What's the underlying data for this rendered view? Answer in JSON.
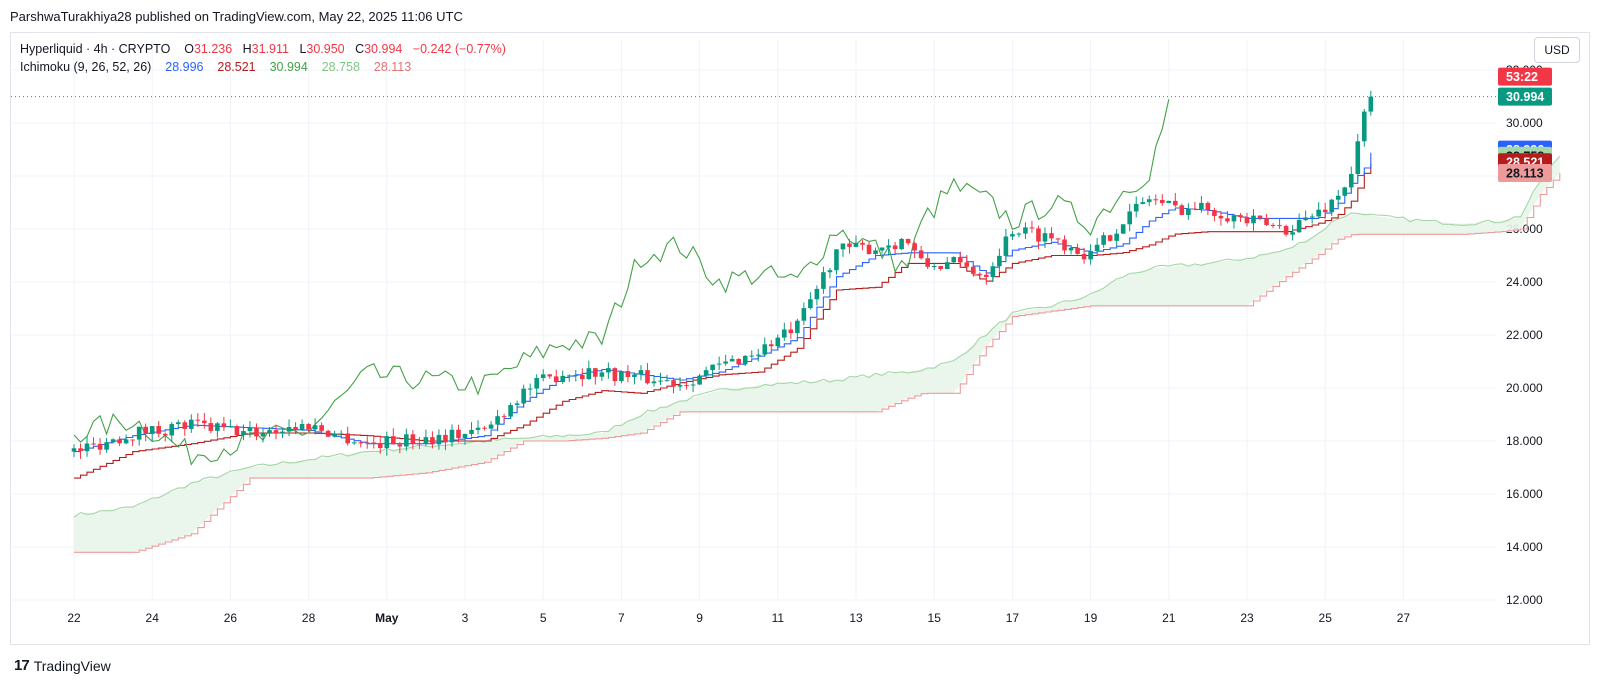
{
  "header": {
    "published_line": "ParshwaTurakhiya28 published on TradingView.com, May 22, 2025 11:06 UTC",
    "currency_button": "USD"
  },
  "legend": {
    "symbol": "Hyperliquid · 4h · CRYPTO",
    "open_label": "O",
    "open": "31.236",
    "high_label": "H",
    "high": "31.911",
    "low_label": "L",
    "low": "30.950",
    "close_label": "C",
    "close": "30.994",
    "change": "−0.242 (−0.77%)",
    "indicator": "Ichimoku (9, 26, 52, 26)",
    "ind_values": [
      "28.996",
      "28.521",
      "30.994",
      "28.758",
      "28.113"
    ]
  },
  "footer": {
    "brand": "TradingView"
  },
  "colors": {
    "up": "#089981",
    "down": "#f23645",
    "conversion": "#2962ff",
    "base": "#b71c1c",
    "lagging": "#43a047",
    "lead_a": "#a5d6a7",
    "lead_b": "#ef9a9a",
    "cloud": "#e8f5e9"
  },
  "chart_data": {
    "type": "candlestick",
    "y_axis": {
      "min": 12,
      "max": 32,
      "ticks": [
        "12.000",
        "14.000",
        "16.000",
        "18.000",
        "20.000",
        "22.000",
        "24.000",
        "26.000",
        "28.000",
        "30.000",
        "32.000"
      ]
    },
    "x_axis": {
      "ticks": [
        "22",
        "24",
        "26",
        "28",
        "May",
        "3",
        "5",
        "7",
        "9",
        "11",
        "13",
        "15",
        "17",
        "19",
        "21",
        "23",
        "25",
        "27"
      ]
    },
    "last_price": 30.994,
    "price_labels": [
      {
        "text": "53:22",
        "value": 31.75,
        "color": "#f23645"
      },
      {
        "text": "30.994",
        "value": 30.994,
        "color": "#089981"
      },
      {
        "text": "28.996",
        "value": 28.996,
        "color": "#2962ff"
      },
      {
        "text": "28.758",
        "value": 28.758,
        "color": "#a5d6a7"
      },
      {
        "text": "28.521",
        "value": 28.521,
        "color": "#b71c1c"
      },
      {
        "text": "28.113",
        "value": 28.113,
        "color": "#ef9a9a"
      }
    ],
    "anchors": [
      {
        "d": 0,
        "price": 17.6,
        "lagging": 18.3,
        "conversion": 17.6,
        "base": 16.6,
        "span_a": 15.2,
        "span_b": 13.8
      },
      {
        "d": 1.5,
        "price": 18.3,
        "lagging": 18.8,
        "conversion": 18.2,
        "base": 17.6,
        "span_a": 15.5,
        "span_b": 13.8
      },
      {
        "d": 3,
        "price": 18.6,
        "lagging": 17.5,
        "conversion": 18.6,
        "base": 17.9,
        "span_a": 16.4,
        "span_b": 14.5
      },
      {
        "d": 4.5,
        "price": 18.3,
        "lagging": 18.0,
        "conversion": 18.5,
        "base": 18.3,
        "span_a": 17.0,
        "span_b": 16.6
      },
      {
        "d": 6,
        "price": 18.6,
        "lagging": 18.4,
        "conversion": 18.4,
        "base": 18.3,
        "span_a": 17.3,
        "span_b": 16.6
      },
      {
        "d": 7.5,
        "price": 17.9,
        "lagging": 20.5,
        "conversion": 17.9,
        "base": 18.2,
        "span_a": 17.6,
        "span_b": 16.6
      },
      {
        "d": 9,
        "price": 18.1,
        "lagging": 20.3,
        "conversion": 17.9,
        "base": 18.0,
        "span_a": 17.8,
        "span_b": 16.8
      },
      {
        "d": 10.5,
        "price": 18.4,
        "lagging": 20.1,
        "conversion": 18.2,
        "base": 18.0,
        "span_a": 18.0,
        "span_b": 17.2
      },
      {
        "d": 11.5,
        "price": 19.9,
        "lagging": 21.0,
        "conversion": 19.5,
        "base": 18.6,
        "span_a": 18.1,
        "span_b": 18.0
      },
      {
        "d": 12.5,
        "price": 20.6,
        "lagging": 21.7,
        "conversion": 20.4,
        "base": 19.5,
        "span_a": 18.2,
        "span_b": 18.0
      },
      {
        "d": 13.5,
        "price": 20.6,
        "lagging": 21.8,
        "conversion": 20.7,
        "base": 19.9,
        "span_a": 18.3,
        "span_b": 18.1
      },
      {
        "d": 14.5,
        "price": 20.4,
        "lagging": 25.0,
        "conversion": 20.5,
        "base": 19.8,
        "span_a": 19.0,
        "span_b": 18.3
      },
      {
        "d": 15.5,
        "price": 20.2,
        "lagging": 25.4,
        "conversion": 20.3,
        "base": 20.2,
        "span_a": 19.5,
        "span_b": 19.1
      },
      {
        "d": 16.5,
        "price": 20.8,
        "lagging": 24.0,
        "conversion": 20.6,
        "base": 20.5,
        "span_a": 19.9,
        "span_b": 19.1
      },
      {
        "d": 17.5,
        "price": 21.4,
        "lagging": 24.3,
        "conversion": 21.2,
        "base": 20.6,
        "span_a": 20.1,
        "span_b": 19.1
      },
      {
        "d": 18.5,
        "price": 22.3,
        "lagging": 24.0,
        "conversion": 21.9,
        "base": 21.5,
        "span_a": 20.2,
        "span_b": 19.1
      },
      {
        "d": 19.5,
        "price": 25.2,
        "lagging": 26.0,
        "conversion": 24.2,
        "base": 23.7,
        "span_a": 20.3,
        "span_b": 19.1
      },
      {
        "d": 20.5,
        "price": 25.3,
        "lagging": 25.3,
        "conversion": 25.0,
        "base": 23.8,
        "span_a": 20.5,
        "span_b": 19.1
      },
      {
        "d": 21.3,
        "price": 25.6,
        "lagging": 24.5,
        "conversion": 25.1,
        "base": 24.7,
        "span_a": 20.6,
        "span_b": 19.6
      },
      {
        "d": 21.7,
        "price": 24.6,
        "lagging": 26.3,
        "conversion": 25.1,
        "base": 24.7,
        "span_a": 20.7,
        "span_b": 19.8
      },
      {
        "d": 22.5,
        "price": 24.7,
        "lagging": 27.6,
        "conversion": 25.1,
        "base": 24.7,
        "span_a": 21.0,
        "span_b": 19.8
      },
      {
        "d": 23.3,
        "price": 24.3,
        "lagging": 27.1,
        "conversion": 24.3,
        "base": 24.0,
        "span_a": 22.0,
        "span_b": 21.5
      },
      {
        "d": 24.0,
        "price": 26.0,
        "lagging": 26.3,
        "conversion": 25.2,
        "base": 24.7,
        "span_a": 22.8,
        "span_b": 22.7
      },
      {
        "d": 25.0,
        "price": 25.7,
        "lagging": 27.0,
        "conversion": 25.5,
        "base": 25.0,
        "span_a": 23.1,
        "span_b": 22.9
      },
      {
        "d": 26.0,
        "price": 25.0,
        "lagging": 26.2,
        "conversion": 25.1,
        "base": 25.0,
        "span_a": 23.5,
        "span_b": 23.1
      },
      {
        "d": 26.8,
        "price": 26.3,
        "lagging": 27.4,
        "conversion": 25.4,
        "base": 25.1,
        "span_a": 24.2,
        "span_b": 23.1
      },
      {
        "d": 27.5,
        "price": 27.2,
        "lagging": 28.2,
        "conversion": 26.3,
        "base": 25.4,
        "span_a": 24.5,
        "span_b": 23.1
      },
      {
        "d": 28.1,
        "price": 26.8,
        "lagging": 31.1,
        "conversion": 26.8,
        "base": 25.8,
        "span_a": 24.6,
        "span_b": 23.1
      },
      {
        "d": 29.0,
        "price": 26.8,
        "lagging": null,
        "conversion": 26.7,
        "base": 25.9,
        "span_a": 24.7,
        "span_b": 23.1
      },
      {
        "d": 30.0,
        "price": 26.3,
        "lagging": null,
        "conversion": 26.4,
        "base": 25.9,
        "span_a": 24.9,
        "span_b": 23.1
      },
      {
        "d": 31.0,
        "price": 26.0,
        "lagging": null,
        "conversion": 26.4,
        "base": 25.9,
        "span_a": 25.2,
        "span_b": 24.2
      },
      {
        "d": 31.8,
        "price": 26.6,
        "lagging": null,
        "conversion": 26.4,
        "base": 26.2,
        "span_a": 25.8,
        "span_b": 25.0
      },
      {
        "d": 32.3,
        "price": 27.2,
        "lagging": null,
        "conversion": 26.9,
        "base": 26.5,
        "span_a": 26.4,
        "span_b": 25.6
      },
      {
        "d": 32.7,
        "price": 28.2,
        "lagging": null,
        "conversion": 27.8,
        "base": 27.1,
        "span_a": 26.6,
        "span_b": 25.8
      },
      {
        "d": 33.0,
        "price": 30.3,
        "lagging": null,
        "conversion": 28.3,
        "base": 28.1,
        "span_a": 26.6,
        "span_b": 25.8
      },
      {
        "d": 33.2,
        "price": 30.994,
        "lagging": null,
        "conversion": 28.996,
        "base": 28.521,
        "span_a": 26.5,
        "span_b": 25.8
      },
      {
        "d": 34.5,
        "price": null,
        "lagging": null,
        "conversion": null,
        "base": null,
        "span_a": 26.3,
        "span_b": 25.8
      },
      {
        "d": 35.5,
        "price": null,
        "lagging": null,
        "conversion": null,
        "base": null,
        "span_a": 26.2,
        "span_b": 25.8
      },
      {
        "d": 36.5,
        "price": null,
        "lagging": null,
        "conversion": null,
        "base": null,
        "span_a": 26.3,
        "span_b": 25.9
      },
      {
        "d": 37.0,
        "price": null,
        "lagging": null,
        "conversion": null,
        "base": null,
        "span_a": 26.5,
        "span_b": 26.0
      },
      {
        "d": 37.5,
        "price": null,
        "lagging": null,
        "conversion": null,
        "base": null,
        "span_a": 27.8,
        "span_b": 27.3
      },
      {
        "d": 38.0,
        "price": null,
        "lagging": null,
        "conversion": null,
        "base": null,
        "span_a": 28.758,
        "span_b": 28.113
      }
    ]
  }
}
